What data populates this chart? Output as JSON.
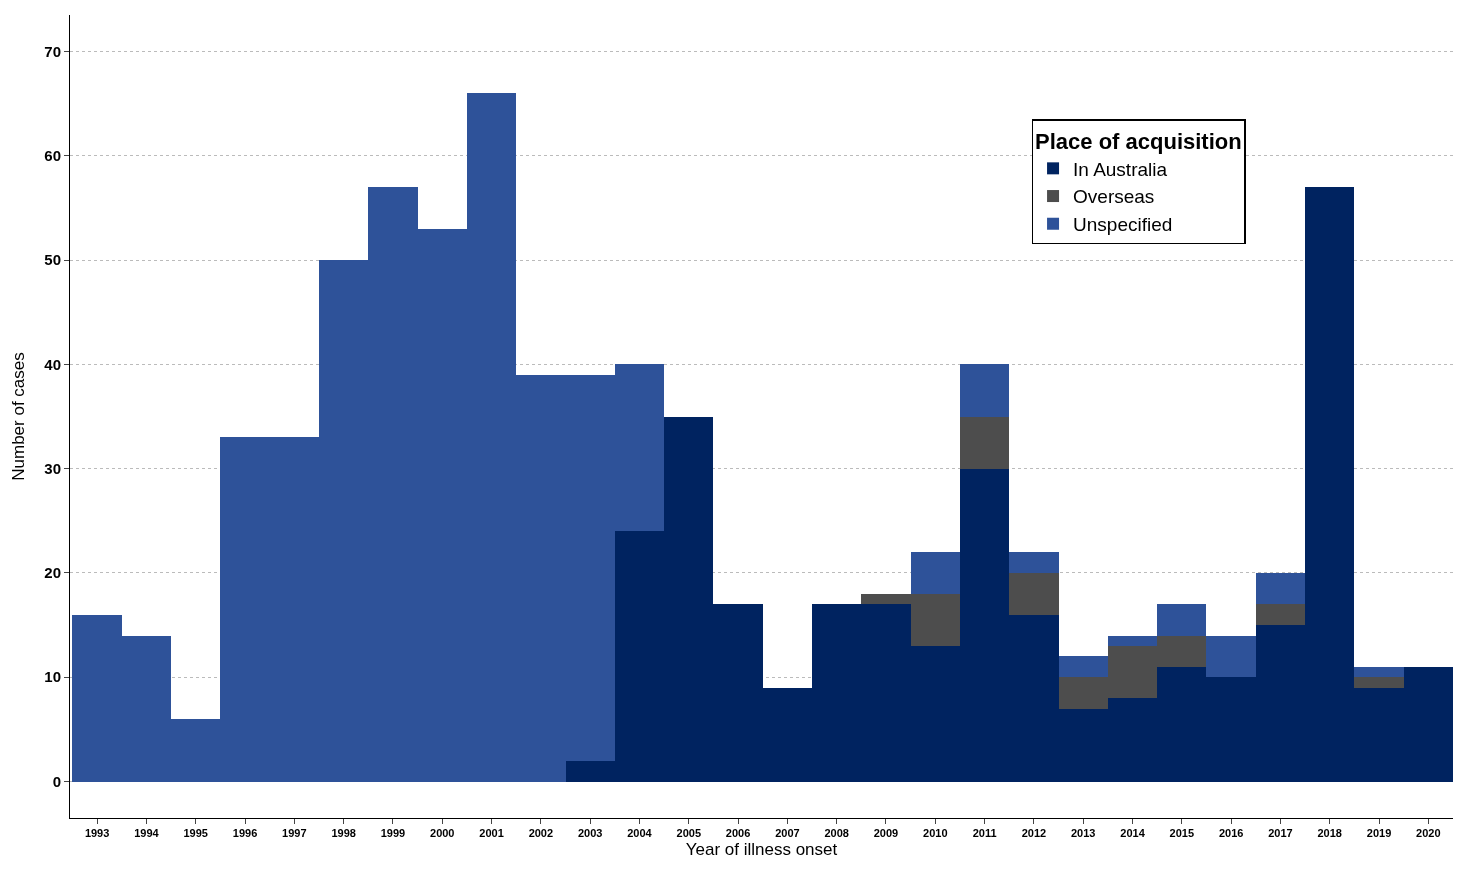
{
  "chart_data": {
    "type": "bar",
    "stacked": true,
    "xlabel": "Year of illness onset",
    "ylabel": "Number of cases",
    "legend_title": "Place of acquisition",
    "legend": "top right",
    "grid": "y",
    "categories": [
      "1993",
      "1994",
      "1995",
      "1996",
      "1997",
      "1998",
      "1999",
      "2000",
      "2001",
      "2002",
      "2003",
      "2004",
      "2005",
      "2006",
      "2007",
      "2008",
      "2009",
      "2010",
      "2011",
      "2012",
      "2013",
      "2014",
      "2015",
      "2016",
      "2017",
      "2018",
      "2019",
      "2020"
    ],
    "series": [
      {
        "name": "In Australia",
        "color": "#002360",
        "values": [
          0,
          0,
          0,
          0,
          0,
          0,
          0,
          0,
          0,
          0,
          2,
          24,
          35,
          17,
          9,
          17,
          17,
          13,
          30,
          16,
          7,
          8,
          11,
          10,
          15,
          57,
          9,
          11
        ]
      },
      {
        "name": "Overseas",
        "color": "#4d4d4d",
        "values": [
          0,
          0,
          0,
          0,
          0,
          0,
          0,
          0,
          0,
          0,
          0,
          0,
          0,
          0,
          0,
          0,
          1,
          5,
          5,
          4,
          3,
          5,
          3,
          0,
          2,
          0,
          1,
          0
        ]
      },
      {
        "name": "Unspecified",
        "color": "#2e5299",
        "values": [
          16,
          14,
          6,
          33,
          33,
          50,
          57,
          53,
          66,
          39,
          37,
          16,
          0,
          0,
          0,
          0,
          0,
          4,
          5,
          2,
          2,
          1,
          3,
          4,
          3,
          0,
          1,
          0
        ]
      }
    ],
    "ylim": [
      -3.5,
      73.5
    ],
    "yticks": [
      0,
      10,
      20,
      30,
      40,
      50,
      60,
      70
    ]
  }
}
